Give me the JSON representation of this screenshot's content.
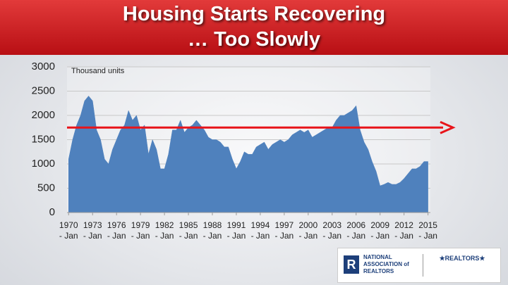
{
  "chart_data": {
    "type": "area",
    "title": "Housing Starts Recovering\n… Too Slowly",
    "y_label": "Thousand units",
    "color": "#4f81bd",
    "x": [
      1970,
      1970.5,
      1971,
      1971.5,
      1972,
      1972.5,
      1973,
      1973.5,
      1974,
      1974.5,
      1975,
      1975.5,
      1976,
      1976.5,
      1977,
      1977.5,
      1978,
      1978.5,
      1979,
      1979.5,
      1980,
      1980.5,
      1981,
      1981.5,
      1982,
      1982.5,
      1983,
      1983.5,
      1984,
      1984.5,
      1985,
      1985.5,
      1986,
      1986.5,
      1987,
      1987.5,
      1988,
      1988.5,
      1989,
      1989.5,
      1990,
      1990.5,
      1991,
      1991.5,
      1992,
      1992.5,
      1993,
      1993.5,
      1994,
      1994.5,
      1995,
      1995.5,
      1996,
      1996.5,
      1997,
      1997.5,
      1998,
      1998.5,
      1999,
      1999.5,
      2000,
      2000.5,
      2001,
      2001.5,
      2002,
      2002.5,
      2003,
      2003.5,
      2004,
      2004.5,
      2005,
      2005.5,
      2006,
      2006.5,
      2007,
      2007.5,
      2008,
      2008.5,
      2009,
      2009.5,
      2010,
      2010.5,
      2011,
      2011.5,
      2012,
      2012.5,
      2013,
      2013.5,
      2014,
      2014.5,
      2015
    ],
    "values": [
      1100,
      1500,
      1800,
      2000,
      2300,
      2400,
      2300,
      1700,
      1500,
      1100,
      1000,
      1300,
      1500,
      1700,
      1800,
      2100,
      1900,
      2000,
      1700,
      1800,
      1200,
      1500,
      1300,
      900,
      900,
      1200,
      1700,
      1700,
      1900,
      1650,
      1750,
      1800,
      1900,
      1800,
      1700,
      1550,
      1500,
      1500,
      1450,
      1350,
      1350,
      1100,
      900,
      1050,
      1250,
      1200,
      1200,
      1350,
      1400,
      1450,
      1300,
      1400,
      1450,
      1500,
      1450,
      1500,
      1600,
      1650,
      1700,
      1650,
      1700,
      1550,
      1600,
      1650,
      1700,
      1750,
      1750,
      1900,
      2000,
      2000,
      2050,
      2100,
      2200,
      1700,
      1450,
      1300,
      1050,
      850,
      550,
      580,
      620,
      580,
      580,
      620,
      700,
      800,
      900,
      900,
      950,
      1050,
      1050
    ],
    "xlim": [
      1969.8,
      2015.3
    ],
    "ylim": [
      0,
      3000
    ],
    "yticks": [
      0,
      500,
      1000,
      1500,
      2000,
      2500,
      3000
    ],
    "xticks": [
      {
        "value": 1970,
        "label": "1970\n- Jan"
      },
      {
        "value": 1973,
        "label": "1973\n- Jan"
      },
      {
        "value": 1976,
        "label": "1976\n- Jan"
      },
      {
        "value": 1979,
        "label": "1979\n- Jan"
      },
      {
        "value": 1982,
        "label": "1982\n- Jan"
      },
      {
        "value": 1985,
        "label": "1985\n- Jan"
      },
      {
        "value": 1988,
        "label": "1988\n- Jan"
      },
      {
        "value": 1991,
        "label": "1991\n- Jan"
      },
      {
        "value": 1994,
        "label": "1994\n- Jan"
      },
      {
        "value": 1997,
        "label": "1997\n- Jan"
      },
      {
        "value": 2000,
        "label": "2000\n- Jan"
      },
      {
        "value": 2003,
        "label": "2003\n- Jan"
      },
      {
        "value": 2006,
        "label": "2006\n- Jan"
      },
      {
        "value": 2009,
        "label": "2009\n- Jan"
      },
      {
        "value": 2012,
        "label": "2012\n- Jan"
      },
      {
        "value": 2015,
        "label": "2015\n- Jan"
      }
    ],
    "grid": true,
    "reference_line": {
      "value": 1750,
      "color": "#e8141a"
    }
  },
  "logos": [
    "NATIONAL\nASSOCIATION of\nREALTORS",
    "★REALTORS★"
  ]
}
